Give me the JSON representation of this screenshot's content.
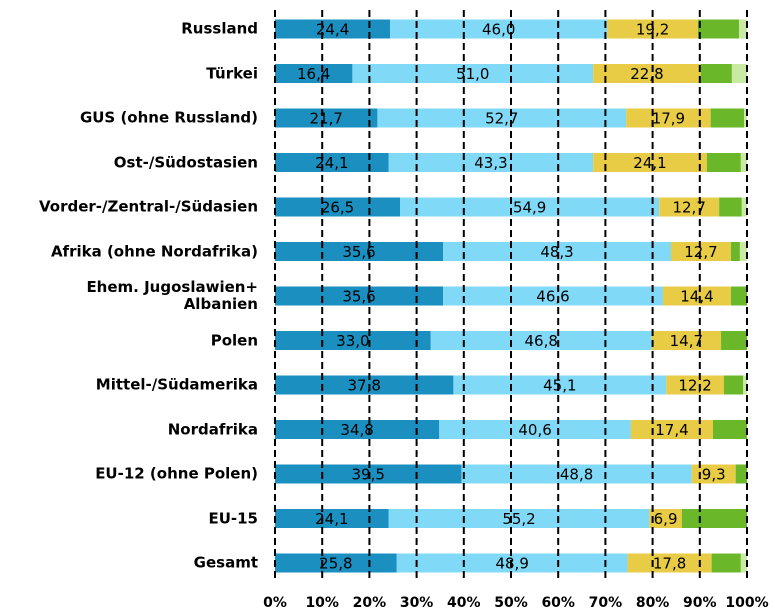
{
  "chart_data": {
    "type": "stacked-barh",
    "categories": [
      "Russland",
      "Türkei",
      "GUS (ohne Russland)",
      "Ost-/Südostasien",
      "Vorder-/Zentral-/Südasien",
      "Afrika (ohne Nordafrika)",
      "Ehem. Jugoslawien+\nAlbanien",
      "Polen",
      "Mittel-/Südamerika",
      "Nordafrika",
      "EU-12 (ohne Polen)",
      "EU-15",
      "Gesamt"
    ],
    "series": [
      {
        "color": "#1a8fc0",
        "values": [
          24.4,
          16.4,
          21.7,
          24.1,
          26.5,
          35.6,
          35.6,
          33.0,
          37.8,
          34.8,
          39.5,
          24.1,
          25.8
        ],
        "value_labels": [
          "24,4",
          "16,4",
          "21,7",
          "24,1",
          "26,5",
          "35,6",
          "35,6",
          "33,0",
          "37,8",
          "34,8",
          "39,5",
          "24,1",
          "25,8"
        ]
      },
      {
        "color": "#80d9f6",
        "values": [
          46.0,
          51.0,
          52.7,
          43.3,
          54.9,
          48.3,
          46.6,
          46.8,
          45.1,
          40.6,
          48.8,
          55.2,
          48.9
        ],
        "value_labels": [
          "46,0",
          "51,0",
          "52,7",
          "43,3",
          "54,9",
          "48,3",
          "46,6",
          "46,8",
          "45,1",
          "40,6",
          "48,8",
          "55,2",
          "48,9"
        ]
      },
      {
        "color": "#e8cc45",
        "values": [
          19.2,
          22.8,
          17.9,
          24.1,
          12.7,
          12.7,
          14.4,
          14.7,
          12.2,
          17.4,
          9.3,
          6.9,
          17.8
        ],
        "value_labels": [
          "19,2",
          "22,8",
          "17,9",
          "24,1",
          "12,7",
          "12,7",
          "14,4",
          "14,7",
          "12,2",
          "17,4",
          "9,3",
          "6,9",
          "17,8"
        ]
      },
      {
        "color": "#6ab82a",
        "values": [
          8.7,
          6.6,
          7.1,
          7.2,
          4.8,
          1.9,
          3.4,
          5.5,
          4.1,
          7.2,
          2.4,
          13.8,
          6.2
        ]
      },
      {
        "color": "#c8eaa2",
        "values": [
          1.7,
          3.2,
          0.6,
          1.3,
          1.1,
          1.5,
          0,
          0,
          0.8,
          0,
          0,
          0,
          1.3
        ]
      }
    ],
    "xlim": [
      0,
      100
    ],
    "xticks": [
      {
        "value": 0,
        "label": "0%"
      },
      {
        "value": 10,
        "label": "10%"
      },
      {
        "value": 20,
        "label": "20%"
      },
      {
        "value": 30,
        "label": "30%"
      },
      {
        "value": 40,
        "label": "40%"
      },
      {
        "value": 50,
        "label": "50%"
      },
      {
        "value": 60,
        "label": "60%"
      },
      {
        "value": 70,
        "label": "70%"
      },
      {
        "value": 80,
        "label": "80%"
      },
      {
        "value": 90,
        "label": "90%"
      },
      {
        "value": 100,
        "label": "100%"
      }
    ],
    "grid": true
  }
}
